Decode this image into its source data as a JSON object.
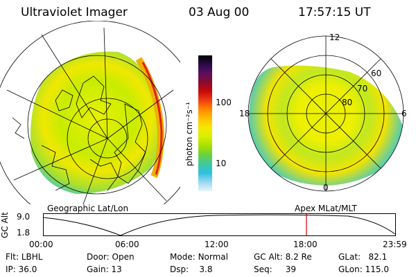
{
  "header": {
    "instrument": "Ultraviolet Imager",
    "date": "03 Aug 00",
    "time": "17:57:15 UT"
  },
  "colorbar": {
    "unit_label": "photon cm⁻²s⁻¹",
    "ticks": [
      "100",
      "10"
    ],
    "colors": [
      "#000000",
      "#2a0a4a",
      "#5a1060",
      "#8b0a2a",
      "#c80a0a",
      "#f04010",
      "#ff8a00",
      "#ffc000",
      "#f5e800",
      "#d8ee00",
      "#a8e000",
      "#6ad040",
      "#40c8a0",
      "#30c0e0",
      "#9ad8f0",
      "#e8f4fa"
    ]
  },
  "left_panel": {
    "label": "Geographic Lat/Lon"
  },
  "right_panel": {
    "label": "Apex MLat/MLT",
    "mlt_labels": {
      "top": "12",
      "left": "18",
      "right": "6",
      "bottom": "0"
    },
    "lat_labels": [
      "60",
      "70",
      "80"
    ]
  },
  "altitude_plot": {
    "ylabel": "GC Alt",
    "y_ticks": [
      "9.0",
      "1.8"
    ],
    "x_ticks": [
      "00:00",
      "06:00",
      "12:00",
      "18:00",
      "23:59"
    ],
    "marker_color": "#cc0000"
  },
  "info": {
    "flt_label": "Flt:",
    "flt_value": "LBHL",
    "ip_label": "IP:",
    "ip_value": "36.0",
    "door_label": "Door:",
    "door_value": "Open",
    "gain_label": "Gain:",
    "gain_value": "13",
    "mode_label": "Mode:",
    "mode_value": "Normal",
    "dsp_label": "Dsp:",
    "dsp_value": "3.8",
    "gcalt_label": "GC Alt:",
    "gcalt_value": "8.2 Re",
    "seq_label": "Seq:",
    "seq_value": "39",
    "glat_label": "GLat:",
    "glat_value": "82.1",
    "glon_label": "GLon:",
    "glon_value": "115.0"
  }
}
